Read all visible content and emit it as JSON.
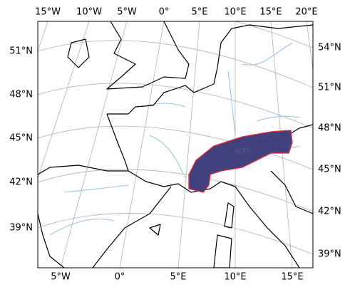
{
  "map": {
    "top_labels": [
      "15°W",
      "10°W",
      "5°W",
      "0°",
      "5°E",
      "10°E",
      "15°E",
      "20°E"
    ],
    "bottom_labels": [
      "5°W",
      "0°",
      "5°E",
      "10°E",
      "15°E"
    ],
    "left_labels": [
      "51°N",
      "48°N",
      "45°N",
      "42°N",
      "39°N"
    ],
    "right_labels": [
      "54°N",
      "51°N",
      "48°N",
      "45°N",
      "42°N",
      "39°N"
    ],
    "region_label": "ALPS"
  }
}
